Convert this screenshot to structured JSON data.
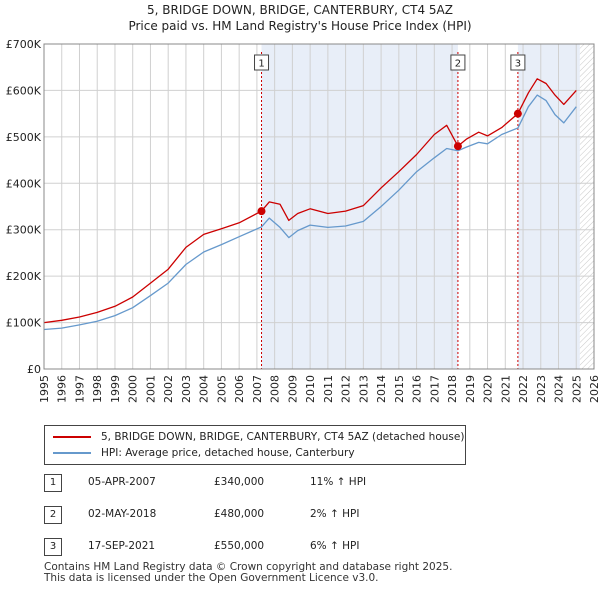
{
  "header": {
    "title": "5, BRIDGE DOWN, BRIDGE, CANTERBURY, CT4 5AZ",
    "subtitle": "Price paid vs. HM Land Registry's House Price Index (HPI)"
  },
  "legend": {
    "property_label": "5, BRIDGE DOWN, BRIDGE, CANTERBURY, CT4 5AZ (detached house)",
    "hpi_label": "HPI: Average price, detached house, Canterbury"
  },
  "sales": [
    {
      "num": "1",
      "date": "05-APR-2007",
      "price": "£340,000",
      "hpi": "11% ↑ HPI"
    },
    {
      "num": "2",
      "date": "02-MAY-2018",
      "price": "£480,000",
      "hpi": "2% ↑ HPI"
    },
    {
      "num": "3",
      "date": "17-SEP-2021",
      "price": "£550,000",
      "hpi": "6% ↑ HPI"
    }
  ],
  "footer": {
    "line1": "Contains HM Land Registry data © Crown copyright and database right 2025.",
    "line2": "This data is licensed under the Open Government Licence v3.0."
  },
  "colors": {
    "property": "#cc0000",
    "hpi": "#6699cc",
    "shade": "#e8eef8",
    "grid": "#d0d0d0",
    "future_hatch": "#cccccc"
  },
  "chart_data": {
    "type": "line",
    "title": "5, BRIDGE DOWN, BRIDGE, CANTERBURY, CT4 5AZ",
    "subtitle": "Price paid vs. HM Land Registry's House Price Index (HPI)",
    "xlim": [
      1995,
      2026
    ],
    "ylim": [
      0,
      700000
    ],
    "x_ticks": [
      1995,
      1996,
      1997,
      1998,
      1999,
      2000,
      2001,
      2002,
      2003,
      2004,
      2005,
      2006,
      2007,
      2008,
      2009,
      2010,
      2011,
      2012,
      2013,
      2014,
      2015,
      2016,
      2017,
      2018,
      2019,
      2020,
      2021,
      2022,
      2023,
      2024,
      2025,
      2026
    ],
    "y_ticks": [
      0,
      100000,
      200000,
      300000,
      400000,
      500000,
      600000,
      700000
    ],
    "y_tick_labels": [
      "£0",
      "£100K",
      "£200K",
      "£300K",
      "£400K",
      "£500K",
      "£600K",
      "£700K"
    ],
    "grid": true,
    "shaded_ranges": [
      [
        2007.26,
        2018.33
      ],
      [
        2021.71,
        2025.2
      ]
    ],
    "future_from": 2025.2,
    "series": [
      {
        "name": "5, BRIDGE DOWN, BRIDGE, CANTERBURY, CT4 5AZ (detached house)",
        "x": [
          1995,
          1996,
          1997,
          1998,
          1999,
          2000,
          2001,
          2002,
          2003,
          2004,
          2005,
          2006,
          2007.26,
          2007.7,
          2008.3,
          2008.8,
          2009.3,
          2010,
          2011,
          2012,
          2013,
          2014,
          2015,
          2016,
          2017,
          2017.7,
          2018.33,
          2018.8,
          2019.5,
          2020,
          2020.8,
          2021.71,
          2022.3,
          2022.8,
          2023.3,
          2023.8,
          2024.3,
          2025
        ],
        "values": [
          100000,
          105000,
          112000,
          122000,
          135000,
          155000,
          185000,
          215000,
          262000,
          290000,
          302000,
          315000,
          340000,
          360000,
          355000,
          320000,
          335000,
          345000,
          335000,
          340000,
          352000,
          390000,
          425000,
          462000,
          505000,
          525000,
          480000,
          495000,
          510000,
          502000,
          520000,
          550000,
          595000,
          625000,
          615000,
          590000,
          570000,
          600000
        ]
      },
      {
        "name": "HPI: Average price, detached house, Canterbury",
        "x": [
          1995,
          1996,
          1997,
          1998,
          1999,
          2000,
          2001,
          2002,
          2003,
          2004,
          2005,
          2006,
          2007.26,
          2007.7,
          2008.3,
          2008.8,
          2009.3,
          2010,
          2011,
          2012,
          2013,
          2014,
          2015,
          2016,
          2017,
          2017.7,
          2018.33,
          2018.8,
          2019.5,
          2020,
          2020.8,
          2021.71,
          2022.3,
          2022.8,
          2023.3,
          2023.8,
          2024.3,
          2025
        ],
        "values": [
          85000,
          88000,
          95000,
          103000,
          115000,
          132000,
          158000,
          185000,
          225000,
          252000,
          268000,
          285000,
          306000,
          325000,
          305000,
          283000,
          298000,
          310000,
          305000,
          308000,
          318000,
          350000,
          385000,
          425000,
          455000,
          475000,
          470000,
          478000,
          488000,
          485000,
          505000,
          519000,
          565000,
          590000,
          578000,
          548000,
          530000,
          565000
        ]
      }
    ],
    "sale_markers": [
      {
        "label": "1",
        "x": 2007.26,
        "y": 340000
      },
      {
        "label": "2",
        "x": 2018.33,
        "y": 480000
      },
      {
        "label": "3",
        "x": 2021.71,
        "y": 550000
      }
    ]
  }
}
